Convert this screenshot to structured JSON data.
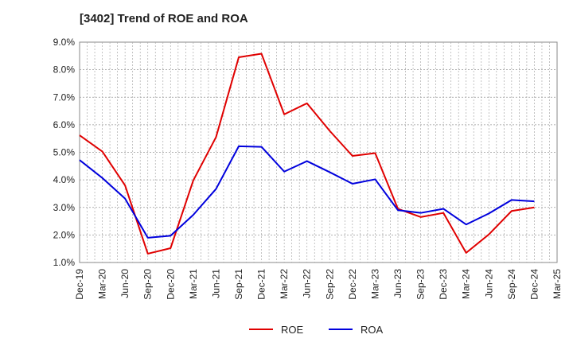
{
  "chart_data": {
    "type": "line",
    "title": "[3402]  Trend of ROE and ROA",
    "categories": [
      "Dec-19",
      "Mar-20",
      "Jun-20",
      "Sep-20",
      "Dec-20",
      "Mar-21",
      "Jun-21",
      "Sep-21",
      "Dec-21",
      "Mar-22",
      "Jun-22",
      "Sep-22",
      "Dec-22",
      "Mar-23",
      "Jun-23",
      "Sep-23",
      "Dec-23",
      "Mar-24",
      "Jun-24",
      "Sep-24",
      "Dec-24",
      "Mar-25"
    ],
    "yticks": [
      "1.0%",
      "2.0%",
      "3.0%",
      "4.0%",
      "5.0%",
      "6.0%",
      "7.0%",
      "8.0%",
      "9.0%"
    ],
    "ylim": [
      1.0,
      9.0
    ],
    "grid": true,
    "legend_position": "bottom",
    "series": [
      {
        "name": "ROE",
        "color": "#e00000",
        "values": [
          5.62,
          5.03,
          3.8,
          1.32,
          1.52,
          3.98,
          5.55,
          8.45,
          8.58,
          6.38,
          6.78,
          5.78,
          4.87,
          4.97,
          2.95,
          2.65,
          2.8,
          1.35,
          2.02,
          2.87,
          3.0,
          null
        ]
      },
      {
        "name": "ROA",
        "color": "#0000dd",
        "values": [
          4.72,
          4.07,
          3.32,
          1.9,
          1.97,
          2.73,
          3.67,
          5.22,
          5.2,
          4.3,
          4.68,
          4.28,
          3.86,
          4.02,
          2.9,
          2.8,
          2.95,
          2.38,
          2.78,
          3.27,
          3.22,
          null
        ]
      }
    ]
  }
}
